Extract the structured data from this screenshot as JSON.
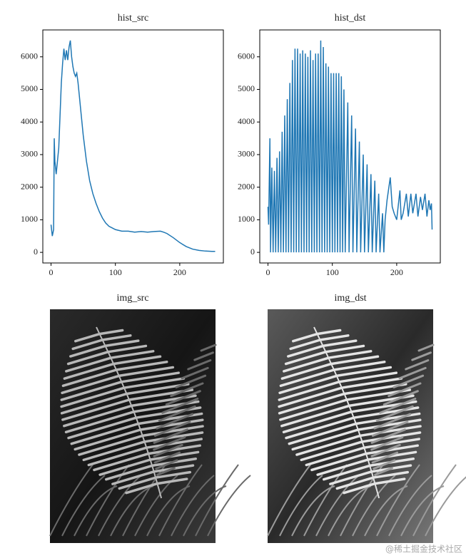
{
  "chart_data": [
    {
      "type": "line",
      "title": "hist_src",
      "color": "#1f77b4",
      "x": [
        0,
        2,
        4,
        5,
        6,
        8,
        10,
        12,
        14,
        16,
        18,
        20,
        22,
        24,
        26,
        28,
        30,
        32,
        34,
        36,
        38,
        40,
        42,
        44,
        46,
        48,
        50,
        55,
        60,
        65,
        70,
        75,
        80,
        85,
        90,
        95,
        100,
        110,
        120,
        130,
        140,
        150,
        160,
        170,
        175,
        180,
        190,
        200,
        210,
        220,
        230,
        240,
        250,
        255
      ],
      "values": [
        850,
        500,
        700,
        3500,
        2800,
        2400,
        2800,
        3200,
        4200,
        5200,
        5800,
        6250,
        5900,
        6200,
        5900,
        6300,
        6500,
        6000,
        5700,
        5500,
        5400,
        5500,
        5200,
        4800,
        4400,
        4000,
        3600,
        2800,
        2200,
        1800,
        1500,
        1250,
        1050,
        900,
        800,
        750,
        700,
        650,
        650,
        620,
        640,
        620,
        640,
        650,
        620,
        580,
        450,
        300,
        180,
        100,
        60,
        40,
        30,
        30
      ],
      "xlim": [
        -12.75,
        267.75
      ],
      "ylim": [
        -325,
        6825
      ],
      "xticks": [
        0,
        100,
        200
      ],
      "yticks": [
        0,
        1000,
        2000,
        3000,
        4000,
        5000,
        6000
      ]
    },
    {
      "type": "line",
      "title": "hist_dst",
      "color": "#1f77b4",
      "x": [
        0,
        1,
        3,
        4,
        6,
        8,
        10,
        12,
        14,
        16,
        18,
        20,
        22,
        24,
        26,
        28,
        30,
        32,
        34,
        36,
        38,
        40,
        42,
        44,
        46,
        48,
        50,
        52,
        54,
        56,
        58,
        60,
        62,
        64,
        66,
        68,
        70,
        72,
        74,
        76,
        78,
        80,
        82,
        84,
        86,
        88,
        90,
        92,
        94,
        96,
        98,
        100,
        102,
        104,
        106,
        108,
        110,
        112,
        114,
        116,
        118,
        120,
        124,
        126,
        130,
        132,
        136,
        138,
        142,
        144,
        148,
        150,
        154,
        156,
        160,
        162,
        166,
        168,
        172,
        174,
        178,
        180,
        182,
        185,
        190,
        193,
        196,
        200,
        205,
        207,
        210,
        215,
        218,
        222,
        225,
        230,
        233,
        237,
        240,
        244,
        247,
        250,
        252,
        254,
        255
      ],
      "values": [
        1400,
        850,
        3500,
        0,
        2600,
        0,
        2500,
        0,
        2900,
        0,
        3100,
        0,
        3700,
        0,
        4200,
        0,
        4700,
        0,
        5200,
        0,
        5900,
        0,
        6250,
        0,
        6250,
        0,
        6100,
        0,
        6200,
        0,
        6100,
        0,
        6000,
        0,
        6200,
        0,
        5900,
        0,
        6100,
        0,
        6100,
        0,
        6500,
        0,
        6300,
        0,
        5800,
        0,
        5700,
        0,
        5500,
        0,
        5500,
        0,
        5500,
        0,
        5500,
        0,
        5400,
        0,
        5000,
        0,
        4600,
        0,
        4200,
        0,
        3800,
        0,
        3400,
        0,
        3000,
        0,
        2700,
        0,
        2400,
        0,
        2200,
        0,
        1800,
        0,
        1200,
        0,
        1000,
        1600,
        2300,
        1400,
        1200,
        1000,
        1900,
        1000,
        1200,
        1800,
        1100,
        1800,
        1200,
        1800,
        1100,
        1700,
        1300,
        1800,
        1100,
        1600,
        1300,
        1500,
        700
      ],
      "xlim": [
        -12.75,
        267.75
      ],
      "ylim": [
        -325,
        6825
      ],
      "xticks": [
        0,
        100,
        200
      ],
      "yticks": [
        0,
        1000,
        2000,
        3000,
        4000,
        5000,
        6000
      ]
    },
    {
      "type": "image",
      "title": "img_src"
    },
    {
      "type": "image",
      "title": "img_dst"
    }
  ],
  "watermark": "@稀土掘金技术社区"
}
